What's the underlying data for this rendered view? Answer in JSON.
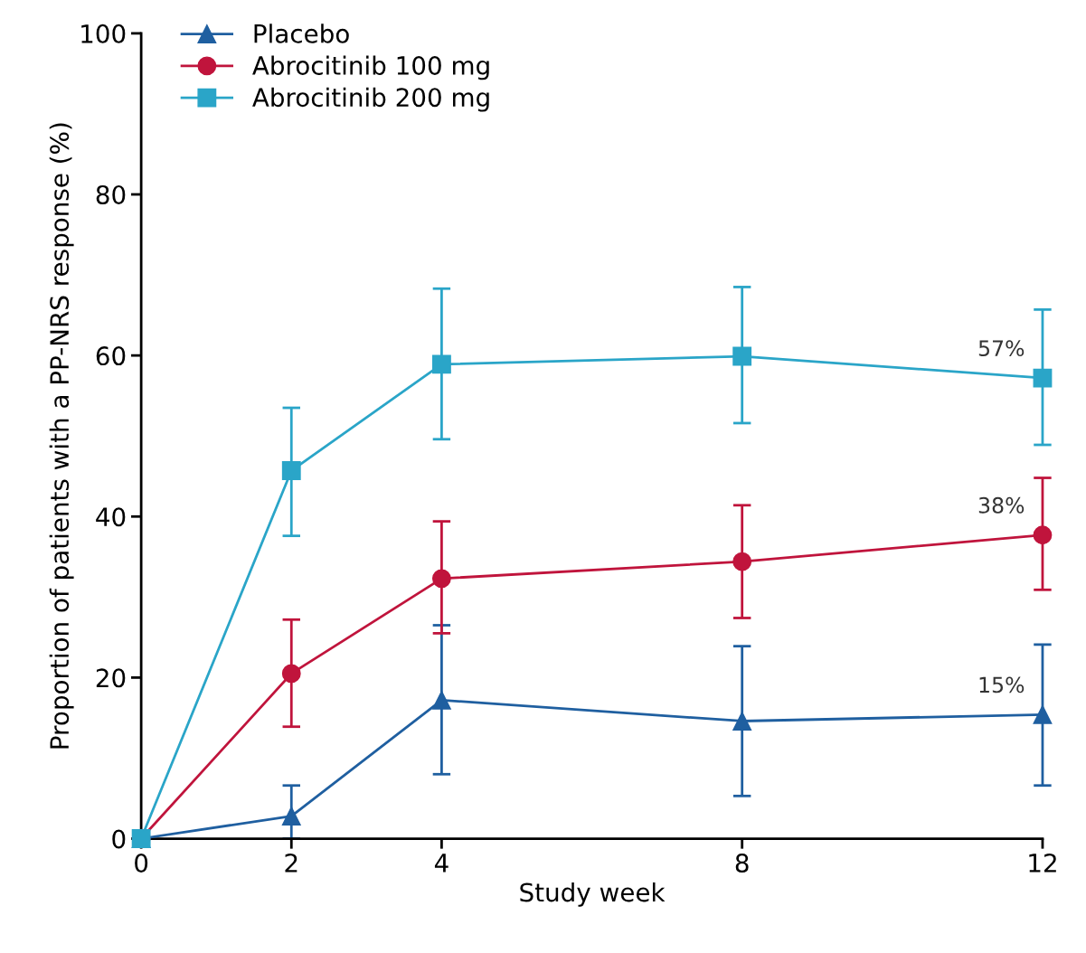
{
  "chart_data": {
    "type": "line",
    "xlabel": "Study week",
    "ylabel": "Proportion of patients with a PP-NRS response (%)",
    "x": [
      0,
      2,
      4,
      8,
      12
    ],
    "xlim": [
      0,
      12
    ],
    "xticks": [
      0,
      2,
      4,
      8,
      12
    ],
    "ylim": [
      0,
      100
    ],
    "yticks": [
      0,
      20,
      40,
      60,
      80,
      100
    ],
    "grid": false,
    "legend": "top left",
    "line_style": "solid",
    "series": [
      {
        "name": "Placebo",
        "color": "#1f5fa0",
        "marker": "triangle",
        "values": [
          0,
          2.8,
          17.2,
          14.6,
          15.4
        ],
        "errors": [
          null,
          [
            0,
            6.6
          ],
          [
            8.0,
            26.5
          ],
          [
            5.3,
            23.9
          ],
          [
            6.6,
            24.1
          ]
        ]
      },
      {
        "name": "Abrocitinib 100 mg",
        "color": "#c0143c",
        "marker": "circle",
        "values": [
          0,
          20.5,
          32.3,
          34.4,
          37.7
        ],
        "errors": [
          null,
          [
            13.9,
            27.2
          ],
          [
            25.5,
            39.4
          ],
          [
            27.4,
            41.4
          ],
          [
            30.9,
            44.8
          ]
        ]
      },
      {
        "name": "Abrocitinib 200 mg",
        "color": "#2aa5c8",
        "marker": "square",
        "values": [
          0,
          45.7,
          58.9,
          59.9,
          57.2
        ],
        "errors": [
          null,
          [
            37.6,
            53.5
          ],
          [
            49.6,
            68.3
          ],
          [
            51.6,
            68.5
          ],
          [
            48.9,
            65.7
          ]
        ]
      }
    ],
    "annotations": [
      {
        "text": "57%",
        "y": 57.2
      },
      {
        "text": "38%",
        "y": 37.7
      },
      {
        "text": "15%",
        "y": 15.4
      }
    ]
  }
}
